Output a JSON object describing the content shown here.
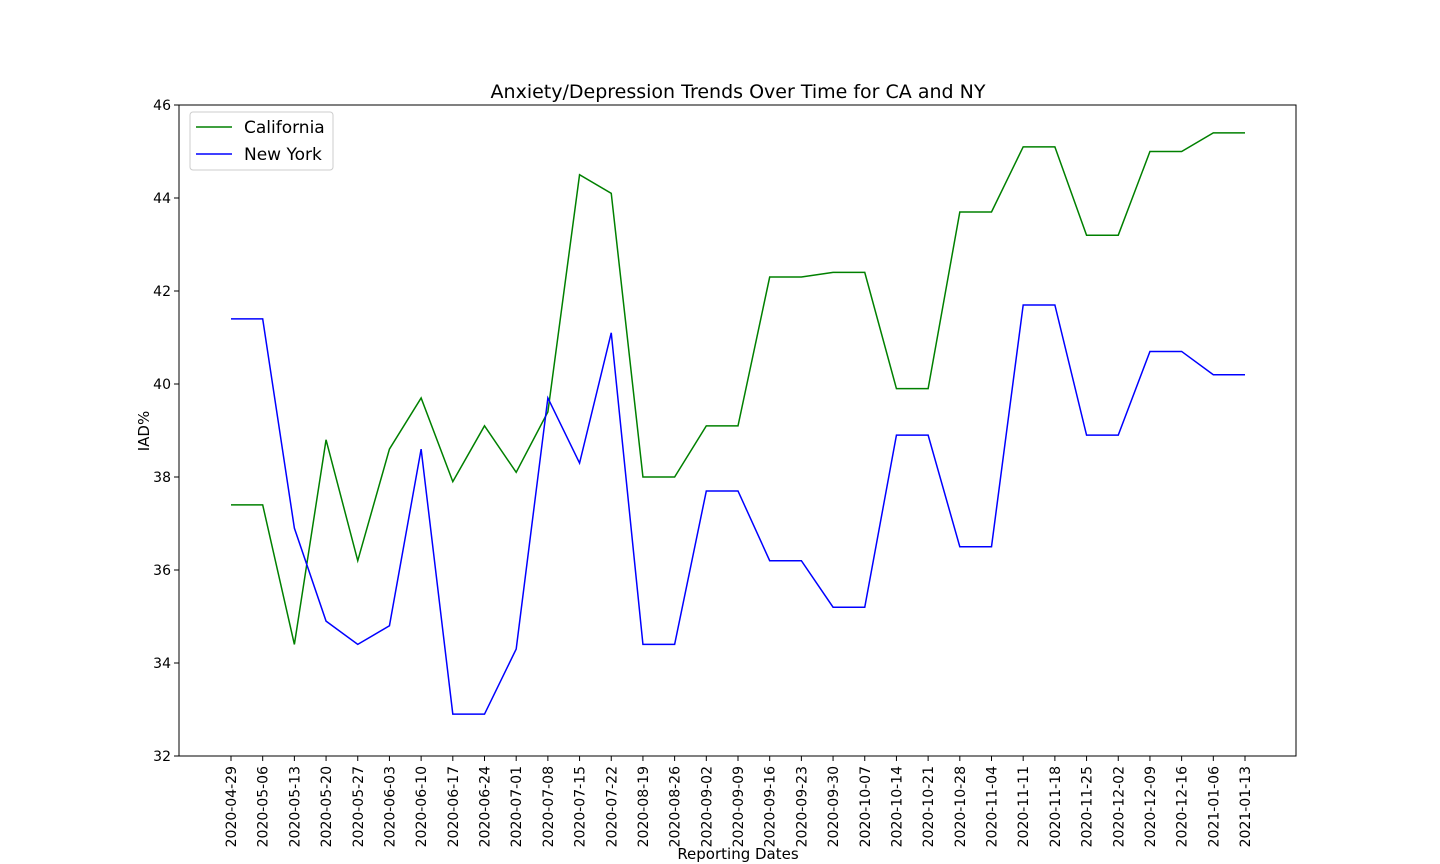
{
  "chart_data": {
    "type": "line",
    "title": "Anxiety/Depression Trends Over Time for CA and NY",
    "xlabel": "Reporting Dates",
    "ylabel": "IAD%",
    "ylim": [
      32,
      46
    ],
    "yticks": [
      32,
      34,
      36,
      38,
      40,
      42,
      44,
      46
    ],
    "grid": false,
    "legend_position": "top-left",
    "categories": [
      "2020-04-29",
      "2020-05-06",
      "2020-05-13",
      "2020-05-20",
      "2020-05-27",
      "2020-06-03",
      "2020-06-10",
      "2020-06-17",
      "2020-06-24",
      "2020-07-01",
      "2020-07-08",
      "2020-07-15",
      "2020-07-22",
      "2020-08-19",
      "2020-08-26",
      "2020-09-02",
      "2020-09-09",
      "2020-09-16",
      "2020-09-23",
      "2020-09-30",
      "2020-10-07",
      "2020-10-14",
      "2020-10-21",
      "2020-10-28",
      "2020-11-04",
      "2020-11-11",
      "2020-11-18",
      "2020-11-25",
      "2020-12-02",
      "2020-12-09",
      "2020-12-16",
      "2021-01-06",
      "2021-01-13"
    ],
    "series": [
      {
        "name": "California",
        "color": "#008000",
        "values": [
          37.4,
          37.4,
          34.4,
          38.8,
          36.2,
          38.6,
          39.7,
          37.9,
          39.1,
          38.1,
          39.4,
          44.5,
          44.1,
          38.0,
          38.0,
          39.1,
          39.1,
          42.3,
          42.3,
          42.4,
          42.4,
          39.9,
          39.9,
          43.7,
          43.7,
          45.1,
          45.1,
          43.2,
          43.2,
          45.0,
          45.0,
          45.4,
          45.4
        ]
      },
      {
        "name": "New York",
        "color": "#0000ff",
        "values": [
          41.4,
          41.4,
          36.9,
          34.9,
          34.4,
          34.8,
          38.6,
          32.9,
          32.9,
          34.3,
          39.7,
          38.3,
          41.1,
          34.4,
          34.4,
          37.7,
          37.7,
          36.2,
          36.2,
          35.2,
          35.2,
          38.9,
          38.9,
          36.5,
          36.5,
          41.7,
          41.7,
          38.9,
          38.9,
          40.7,
          40.7,
          40.2,
          40.2
        ]
      }
    ]
  }
}
